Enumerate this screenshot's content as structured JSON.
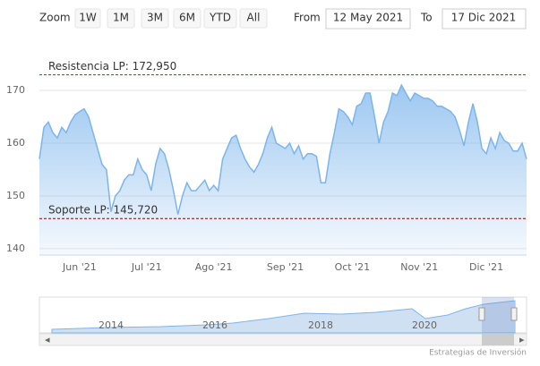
{
  "chart_data": {
    "type": "area",
    "range_selector": {
      "zoom_label": "Zoom",
      "buttons": [
        "1W",
        "1M",
        "3M",
        "6M",
        "YTD",
        "All"
      ],
      "from_label": "From",
      "from": "12 May 2021",
      "to_label": "To",
      "to": "17 Dic 2021"
    },
    "categories": [
      null,
      null,
      null,
      null,
      null,
      null,
      null,
      null,
      null,
      "Jun '21",
      null,
      null,
      null,
      null,
      null,
      null,
      null,
      null,
      null,
      null,
      null,
      null,
      null,
      null,
      "Jul '21",
      null,
      null,
      null,
      null,
      null,
      null,
      null,
      null,
      null,
      null,
      null,
      null,
      null,
      null,
      "Ago '21",
      null,
      null,
      null,
      null,
      null,
      null,
      null,
      null,
      null,
      null,
      null,
      null,
      null,
      null,
      null,
      "Sep '21",
      null,
      null,
      null,
      null,
      null,
      null,
      null,
      null,
      null,
      null,
      null,
      null,
      null,
      null,
      "Oct '21",
      null,
      null,
      null,
      null,
      null,
      null,
      null,
      null,
      null,
      null,
      null,
      null,
      null,
      null,
      "Nov '21",
      null,
      null,
      null,
      null,
      null,
      null,
      null,
      null,
      null,
      null,
      null,
      null,
      null,
      null,
      "Dic '21",
      null,
      null,
      null,
      null,
      null,
      null,
      null,
      null,
      null
    ],
    "series": [
      {
        "color": "#7cb5ec",
        "values": [
          157,
          163,
          164,
          162,
          161,
          163,
          162,
          164,
          165.4,
          166,
          166.5,
          165,
          162,
          159,
          156,
          155,
          147,
          150,
          151,
          153,
          154,
          154,
          157,
          155,
          154,
          151,
          156,
          159,
          158,
          155,
          151,
          146.5,
          150,
          152.5,
          151,
          151,
          152,
          153,
          151,
          152,
          151,
          157,
          159,
          161,
          161.5,
          159,
          157,
          155.5,
          154.5,
          156,
          158,
          161,
          163,
          160,
          159.5,
          159,
          160,
          158,
          159.5,
          157,
          158,
          158,
          157.5,
          152.5,
          152.5,
          158,
          162,
          166.5,
          166,
          165,
          163.5,
          167,
          167.5,
          169.5,
          169.5,
          165,
          160,
          164,
          166,
          169.5,
          169,
          171,
          169.5,
          168,
          169.5,
          169,
          168.5,
          168.5,
          168,
          167,
          167,
          166.5,
          166,
          165,
          162.5,
          159.5,
          164,
          167.5,
          164,
          159,
          158,
          161,
          159,
          162,
          160.5,
          160,
          158.5,
          158.5,
          160,
          157
        ]
      }
    ],
    "plot_lines": [
      {
        "label": "Resistencia LP: 172,950",
        "value": 172.95,
        "color": "#1e6b1e"
      },
      {
        "label": "Soporte LP: 145,720",
        "value": 145.72,
        "color": "#8b0000"
      }
    ],
    "ylim": [
      138.8,
      179.5
    ],
    "yticks": [
      140,
      150,
      160,
      170
    ],
    "grid": true,
    "navigator_labels": [
      "2014",
      "2016",
      "2018",
      "2020"
    ],
    "credits": "Estrategias de Inversión"
  }
}
